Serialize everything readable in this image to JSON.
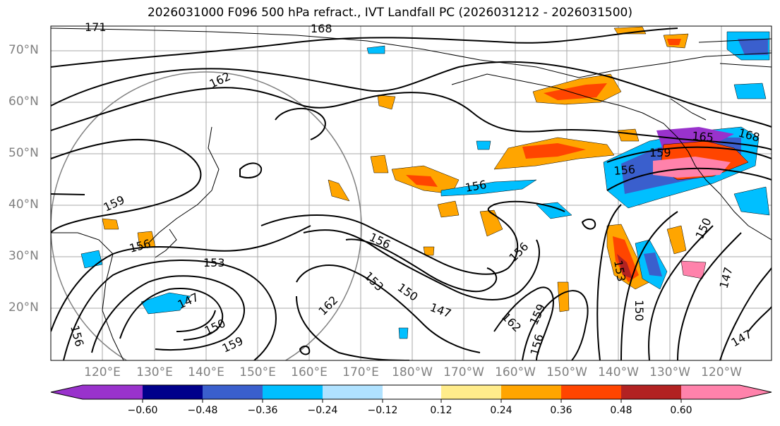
{
  "title": "2026031000 F096 500 hPa refract., IVT Landfall PC (2026031212 - 2026031500)",
  "map": {
    "lat_labels": [
      "70°N",
      "60°N",
      "50°N",
      "40°N",
      "30°N",
      "20°N"
    ],
    "lon_labels": [
      "120°E",
      "130°E",
      "140°E",
      "150°E",
      "160°E",
      "170°E",
      "180°W",
      "170°W",
      "160°W",
      "150°W",
      "140°W",
      "130°W",
      "120°W"
    ],
    "contour_labels": [
      "171",
      "168",
      "162",
      "159",
      "156",
      "156",
      "153",
      "147",
      "150",
      "159",
      "156",
      "153",
      "150",
      "147",
      "162",
      "156",
      "162",
      "159",
      "156",
      "156",
      "153",
      "150",
      "150",
      "147",
      "147",
      "168",
      "165",
      "159",
      "156"
    ]
  },
  "colorbar": {
    "ticks": [
      "−0.60",
      "−0.48",
      "−0.36",
      "−0.24",
      "−0.12",
      "0.12",
      "0.24",
      "0.36",
      "0.48",
      "0.60"
    ],
    "colors": [
      "#9932cc",
      "#00008b",
      "#3a5fcd",
      "#00bfff",
      "#b0e2ff",
      "#ffffff",
      "#ffec8b",
      "#ffa500",
      "#ff4500",
      "#b22222",
      "#ff82ab"
    ]
  }
}
